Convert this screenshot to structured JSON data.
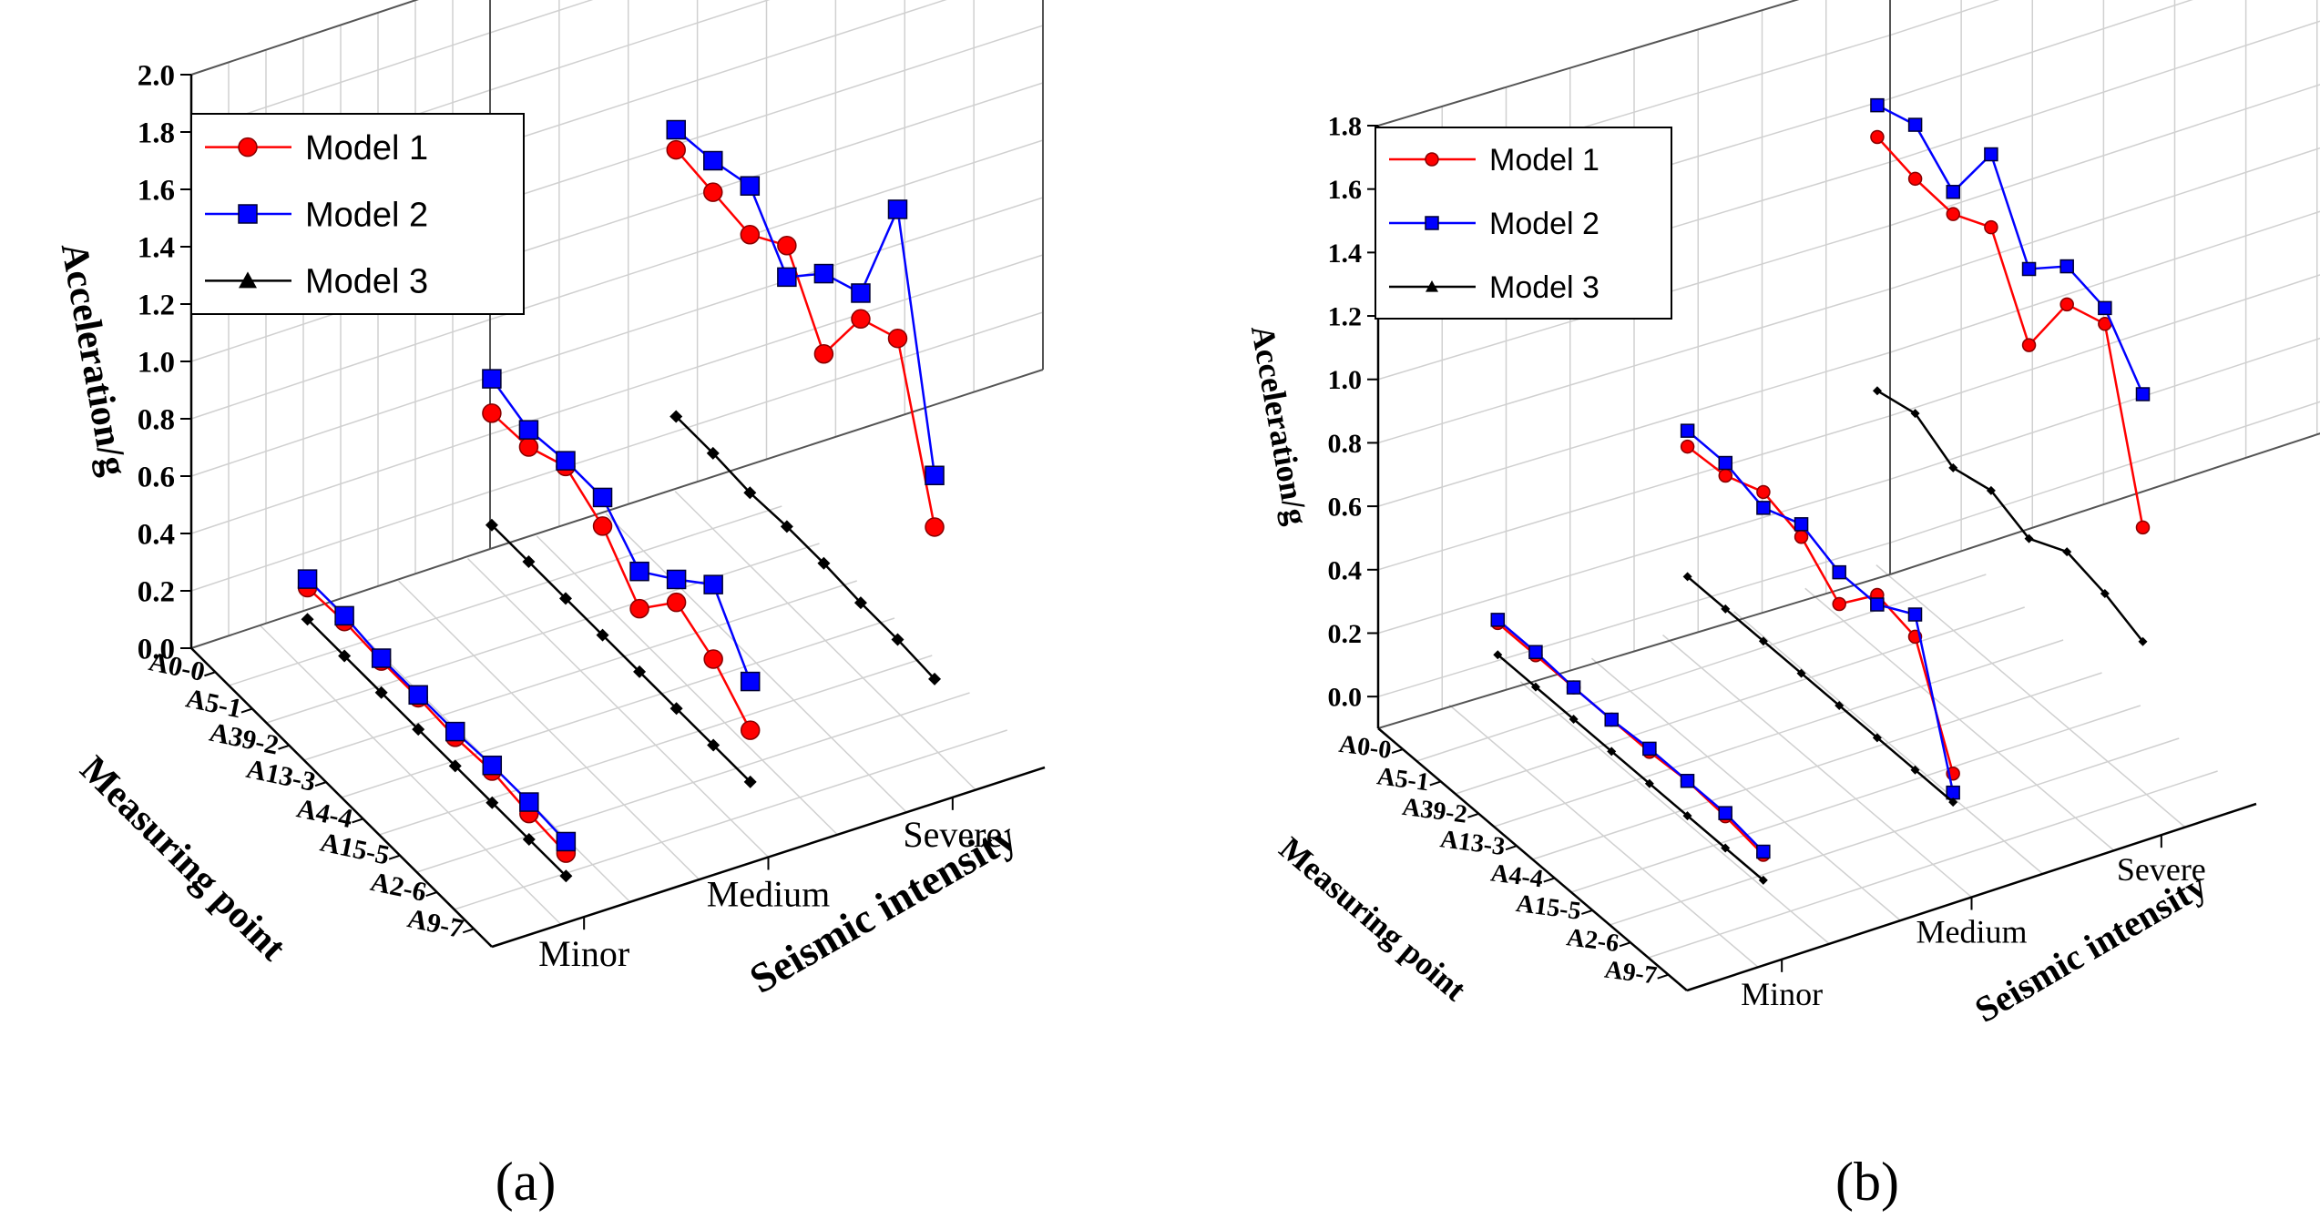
{
  "chart_data": [
    {
      "type": "line",
      "panel_label": "(a)",
      "zlabel": "Acceleration/g",
      "xlabel": "Seismic intensity",
      "ylabel": "Measuring point",
      "zlim": [
        0.0,
        2.0
      ],
      "z_ticks": [
        "0.0",
        "0.2",
        "0.4",
        "0.6",
        "0.8",
        "1.0",
        "1.2",
        "1.4",
        "1.6",
        "1.8",
        "2.0"
      ],
      "intensities": [
        "Minor",
        "Medium",
        "Severe"
      ],
      "measuring_points": [
        "A0-0",
        "A5-1",
        "A39-2",
        "A13-3",
        "A4-4",
        "A15-5",
        "A2-6",
        "A9-7"
      ],
      "legend": [
        "Model 1",
        "Model 2",
        "Model 3"
      ],
      "series": [
        {
          "name": "Model 1",
          "color": "#ff0000",
          "marker": "circle",
          "values": {
            "Minor": [
              0.19,
              0.2,
              0.19,
              0.19,
              0.18,
              0.19,
              0.17,
              0.16
            ],
            "Medium": [
              0.59,
              0.6,
              0.66,
              0.58,
              0.42,
              0.57,
              0.5,
              0.38
            ],
            "Severe": [
              1.3,
              1.28,
              1.26,
              1.35,
              1.1,
              1.35,
              1.41,
              0.88
            ]
          }
        },
        {
          "name": "Model 2",
          "color": "#0000ff",
          "marker": "square",
          "values": {
            "Minor": [
              0.22,
              0.22,
              0.2,
              0.2,
              0.2,
              0.21,
              0.21,
              0.2
            ],
            "Medium": [
              0.71,
              0.66,
              0.68,
              0.68,
              0.55,
              0.65,
              0.76,
              0.55
            ],
            "Severe": [
              1.37,
              1.39,
              1.43,
              1.24,
              1.38,
              1.44,
              1.86,
              1.06
            ]
          }
        },
        {
          "name": "Model 3",
          "color": "#000000",
          "marker": "triangle",
          "values": {
            "Minor": [
              0.08,
              0.08,
              0.08,
              0.08,
              0.08,
              0.08,
              0.08,
              0.08
            ],
            "Medium": [
              0.2,
              0.2,
              0.2,
              0.2,
              0.2,
              0.2,
              0.2,
              0.2
            ],
            "Severe": [
              0.37,
              0.37,
              0.36,
              0.37,
              0.37,
              0.36,
              0.36,
              0.35
            ]
          }
        }
      ]
    },
    {
      "type": "line",
      "panel_label": "(b)",
      "zlabel": "Acceleration/g",
      "xlabel": "Seismic intensity",
      "ylabel": "Measuring point",
      "zlim": [
        -0.1,
        1.8
      ],
      "z_ticks": [
        "0.0",
        "0.2",
        "0.4",
        "0.6",
        "0.8",
        "1.0",
        "1.2",
        "1.4",
        "1.6",
        "1.8"
      ],
      "intensities": [
        "Minor",
        "Medium",
        "Severe"
      ],
      "measuring_points": [
        "A0-0",
        "A5-1",
        "A39-2",
        "A13-3",
        "A4-4",
        "A15-5",
        "A2-6",
        "A9-7"
      ],
      "legend": [
        "Model 1",
        "Model 2",
        "Model 3"
      ],
      "series": [
        {
          "name": "Model 1",
          "color": "#ff0000",
          "marker": "circle",
          "values": {
            "Minor": [
              0.2,
              0.2,
              0.2,
              0.2,
              0.2,
              0.21,
              0.2,
              0.18
            ],
            "Medium": [
              0.56,
              0.57,
              0.62,
              0.58,
              0.47,
              0.6,
              0.57,
              0.24
            ],
            "Severe": [
              1.34,
              1.31,
              1.3,
              1.36,
              1.09,
              1.32,
              1.36,
              0.82
            ]
          }
        },
        {
          "name": "Model 2",
          "color": "#0000ff",
          "marker": "square",
          "values": {
            "Minor": [
              0.21,
              0.21,
              0.2,
              0.2,
              0.21,
              0.21,
              0.21,
              0.19
            ],
            "Medium": [
              0.61,
              0.61,
              0.57,
              0.62,
              0.57,
              0.57,
              0.64,
              0.18
            ],
            "Severe": [
              1.44,
              1.48,
              1.37,
              1.59,
              1.33,
              1.44,
              1.41,
              1.24
            ]
          }
        },
        {
          "name": "Model 3",
          "color": "#000000",
          "marker": "triangle",
          "values": {
            "Minor": [
              0.1,
              0.1,
              0.1,
              0.1,
              0.1,
              0.1,
              0.1,
              0.1
            ],
            "Medium": [
              0.15,
              0.15,
              0.15,
              0.15,
              0.15,
              0.15,
              0.15,
              0.15
            ],
            "Severe": [
              0.54,
              0.57,
              0.5,
              0.53,
              0.48,
              0.54,
              0.51,
              0.46
            ]
          }
        }
      ]
    }
  ]
}
